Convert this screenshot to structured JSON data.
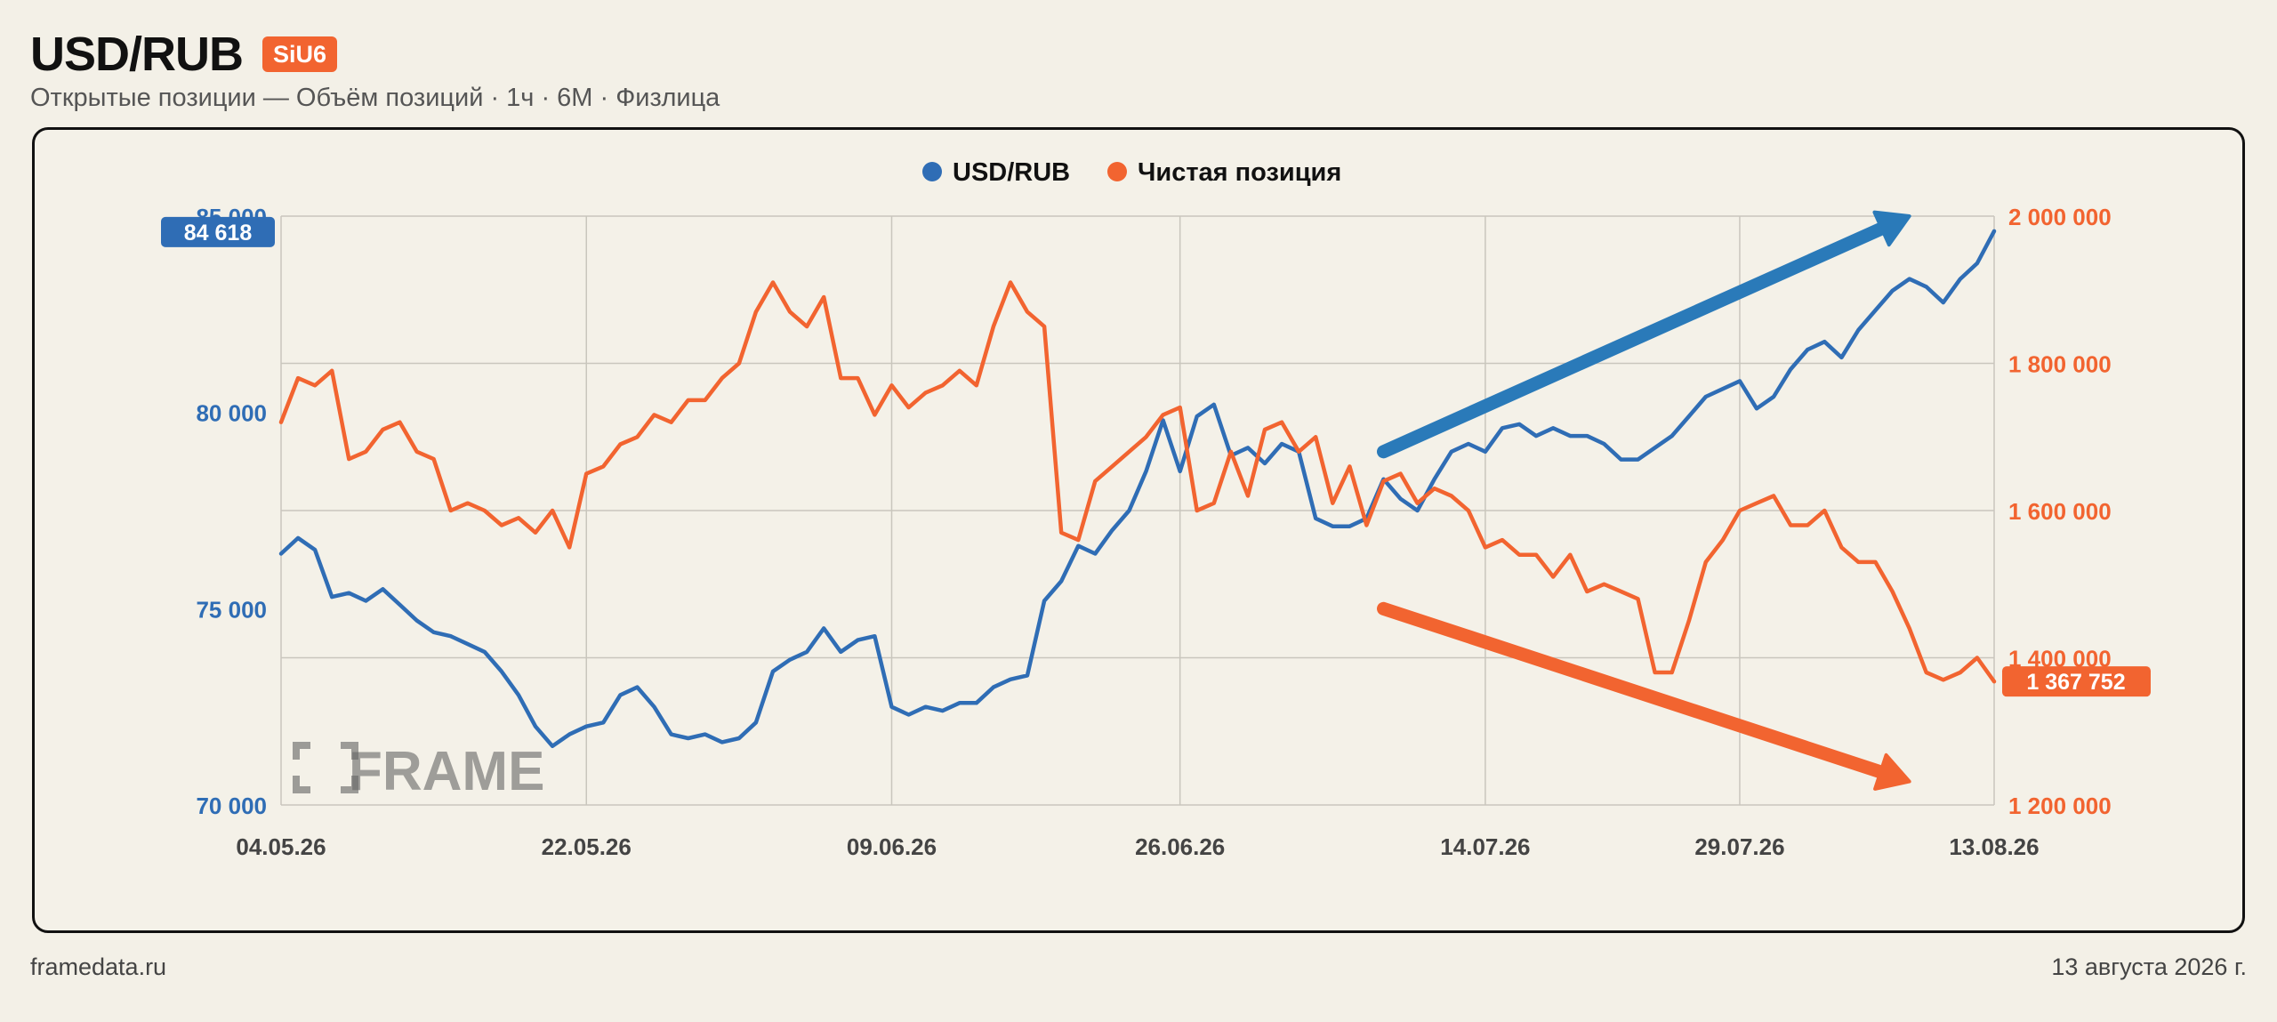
{
  "header": {
    "title": "USD/RUB",
    "badge": "SiU6",
    "subtitle": "Открытые позиции — Объём позиций · 1ч · 6М · Физлица"
  },
  "footer": {
    "source": "framedata.ru",
    "date": "13 августа 2026 г."
  },
  "watermark": "FRAME",
  "colors": {
    "usd": "#2f6db5",
    "position": "#f26430",
    "arrow_blue": "#2a7ab9",
    "arrow_orange": "#f26430"
  },
  "chart_data": {
    "type": "line",
    "legend": [
      "USD/RUB",
      "Чистая позиция"
    ],
    "legend_position": "top-center",
    "grid": true,
    "x_ticks": [
      "04.05.26",
      "22.05.26",
      "09.06.26",
      "26.06.26",
      "14.07.26",
      "29.07.26",
      "13.08.26"
    ],
    "x_range": [
      "04.05.26",
      "13.08.26"
    ],
    "y_left": {
      "ticks": [
        "70 000",
        "75 000",
        "80 000",
        "85 000"
      ],
      "range": [
        70000,
        85000
      ]
    },
    "y_right": {
      "ticks": [
        "1 200 000",
        "1 400 000",
        "1 600 000",
        "1 800 000",
        "2 000 000"
      ],
      "range": [
        1200000,
        2000000
      ]
    },
    "last_labels": {
      "usd": "84 618",
      "position": "1 367 752"
    },
    "series": [
      {
        "name": "USD/RUB",
        "axis": "left",
        "points": [
          [
            "04.05.26",
            76400
          ],
          [
            "05.05.26",
            76800
          ],
          [
            "06.05.26",
            76500
          ],
          [
            "07.05.26",
            75300
          ],
          [
            "08.05.26",
            75400
          ],
          [
            "09.05.26",
            75200
          ],
          [
            "10.05.26",
            75500
          ],
          [
            "11.05.26",
            75100
          ],
          [
            "12.05.26",
            74700
          ],
          [
            "13.05.26",
            74400
          ],
          [
            "14.05.26",
            74300
          ],
          [
            "15.05.26",
            74100
          ],
          [
            "16.05.26",
            73900
          ],
          [
            "17.05.26",
            73400
          ],
          [
            "18.05.26",
            72800
          ],
          [
            "19.05.26",
            72000
          ],
          [
            "20.05.26",
            71500
          ],
          [
            "21.05.26",
            71800
          ],
          [
            "22.05.26",
            72000
          ],
          [
            "23.05.26",
            72100
          ],
          [
            "24.05.26",
            72800
          ],
          [
            "25.05.26",
            73000
          ],
          [
            "26.05.26",
            72500
          ],
          [
            "27.05.26",
            71800
          ],
          [
            "28.05.26",
            71700
          ],
          [
            "29.05.26",
            71800
          ],
          [
            "30.05.26",
            71600
          ],
          [
            "31.05.26",
            71700
          ],
          [
            "01.06.26",
            72100
          ],
          [
            "02.06.26",
            73400
          ],
          [
            "03.06.26",
            73700
          ],
          [
            "04.06.26",
            73900
          ],
          [
            "05.06.26",
            74500
          ],
          [
            "06.06.26",
            73900
          ],
          [
            "07.06.26",
            74200
          ],
          [
            "08.06.26",
            74300
          ],
          [
            "09.06.26",
            72500
          ],
          [
            "10.06.26",
            72300
          ],
          [
            "11.06.26",
            72500
          ],
          [
            "12.06.26",
            72400
          ],
          [
            "13.06.26",
            72600
          ],
          [
            "14.06.26",
            72600
          ],
          [
            "15.06.26",
            73000
          ],
          [
            "16.06.26",
            73200
          ],
          [
            "17.06.26",
            73300
          ],
          [
            "18.06.26",
            75200
          ],
          [
            "19.06.26",
            75700
          ],
          [
            "20.06.26",
            76600
          ],
          [
            "21.06.26",
            76400
          ],
          [
            "22.06.26",
            77000
          ],
          [
            "23.06.26",
            77500
          ],
          [
            "24.06.26",
            78500
          ],
          [
            "25.06.26",
            79800
          ],
          [
            "26.06.26",
            78500
          ],
          [
            "27.06.26",
            79900
          ],
          [
            "28.06.26",
            80200
          ],
          [
            "29.06.26",
            78900
          ],
          [
            "30.06.26",
            79100
          ],
          [
            "01.07.26",
            78700
          ],
          [
            "02.07.26",
            79200
          ],
          [
            "03.07.26",
            79000
          ],
          [
            "04.07.26",
            77300
          ],
          [
            "05.07.26",
            77100
          ],
          [
            "06.07.26",
            77100
          ],
          [
            "07.07.26",
            77300
          ],
          [
            "08.07.26",
            78300
          ],
          [
            "09.07.26",
            77800
          ],
          [
            "10.07.26",
            77500
          ],
          [
            "11.07.26",
            78300
          ],
          [
            "12.07.26",
            79000
          ],
          [
            "13.07.26",
            79200
          ],
          [
            "14.07.26",
            79000
          ],
          [
            "15.07.26",
            79600
          ],
          [
            "16.07.26",
            79700
          ],
          [
            "17.07.26",
            79400
          ],
          [
            "18.07.26",
            79600
          ],
          [
            "19.07.26",
            79400
          ],
          [
            "20.07.26",
            79400
          ],
          [
            "21.07.26",
            79200
          ],
          [
            "22.07.26",
            78800
          ],
          [
            "23.07.26",
            78800
          ],
          [
            "24.07.26",
            79100
          ],
          [
            "25.07.26",
            79400
          ],
          [
            "26.07.26",
            79900
          ],
          [
            "27.07.26",
            80400
          ],
          [
            "28.07.26",
            80600
          ],
          [
            "29.07.26",
            80800
          ],
          [
            "30.07.26",
            80100
          ],
          [
            "31.07.26",
            80400
          ],
          [
            "01.08.26",
            81100
          ],
          [
            "02.08.26",
            81600
          ],
          [
            "03.08.26",
            81800
          ],
          [
            "04.08.26",
            81400
          ],
          [
            "05.08.26",
            82100
          ],
          [
            "06.08.26",
            82600
          ],
          [
            "07.08.26",
            83100
          ],
          [
            "08.08.26",
            83400
          ],
          [
            "09.08.26",
            83200
          ],
          [
            "10.08.26",
            82800
          ],
          [
            "11.08.26",
            83400
          ],
          [
            "12.08.26",
            83800
          ],
          [
            "13.08.26",
            84618
          ]
        ]
      },
      {
        "name": "Чистая позиция",
        "axis": "right",
        "points": [
          [
            "04.05.26",
            1720000
          ],
          [
            "05.05.26",
            1780000
          ],
          [
            "06.05.26",
            1770000
          ],
          [
            "07.05.26",
            1790000
          ],
          [
            "08.05.26",
            1670000
          ],
          [
            "09.05.26",
            1680000
          ],
          [
            "10.05.26",
            1710000
          ],
          [
            "11.05.26",
            1720000
          ],
          [
            "12.05.26",
            1680000
          ],
          [
            "13.05.26",
            1670000
          ],
          [
            "14.05.26",
            1600000
          ],
          [
            "15.05.26",
            1610000
          ],
          [
            "16.05.26",
            1600000
          ],
          [
            "17.05.26",
            1580000
          ],
          [
            "18.05.26",
            1590000
          ],
          [
            "19.05.26",
            1570000
          ],
          [
            "20.05.26",
            1600000
          ],
          [
            "21.05.26",
            1550000
          ],
          [
            "22.05.26",
            1650000
          ],
          [
            "23.05.26",
            1660000
          ],
          [
            "24.05.26",
            1690000
          ],
          [
            "25.05.26",
            1700000
          ],
          [
            "26.05.26",
            1730000
          ],
          [
            "27.05.26",
            1720000
          ],
          [
            "28.05.26",
            1750000
          ],
          [
            "29.05.26",
            1750000
          ],
          [
            "30.05.26",
            1780000
          ],
          [
            "31.05.26",
            1800000
          ],
          [
            "01.06.26",
            1870000
          ],
          [
            "02.06.26",
            1910000
          ],
          [
            "03.06.26",
            1870000
          ],
          [
            "04.06.26",
            1850000
          ],
          [
            "05.06.26",
            1890000
          ],
          [
            "06.06.26",
            1780000
          ],
          [
            "07.06.26",
            1780000
          ],
          [
            "08.06.26",
            1730000
          ],
          [
            "09.06.26",
            1770000
          ],
          [
            "10.06.26",
            1740000
          ],
          [
            "11.06.26",
            1760000
          ],
          [
            "12.06.26",
            1770000
          ],
          [
            "13.06.26",
            1790000
          ],
          [
            "14.06.26",
            1770000
          ],
          [
            "15.06.26",
            1850000
          ],
          [
            "16.06.26",
            1910000
          ],
          [
            "17.06.26",
            1870000
          ],
          [
            "18.06.26",
            1850000
          ],
          [
            "19.06.26",
            1570000
          ],
          [
            "20.06.26",
            1560000
          ],
          [
            "21.06.26",
            1640000
          ],
          [
            "22.06.26",
            1660000
          ],
          [
            "23.06.26",
            1680000
          ],
          [
            "24.06.26",
            1700000
          ],
          [
            "25.06.26",
            1730000
          ],
          [
            "26.06.26",
            1740000
          ],
          [
            "27.06.26",
            1600000
          ],
          [
            "28.06.26",
            1610000
          ],
          [
            "29.06.26",
            1680000
          ],
          [
            "30.06.26",
            1620000
          ],
          [
            "01.07.26",
            1710000
          ],
          [
            "02.07.26",
            1720000
          ],
          [
            "03.07.26",
            1680000
          ],
          [
            "04.07.26",
            1700000
          ],
          [
            "05.07.26",
            1610000
          ],
          [
            "06.07.26",
            1660000
          ],
          [
            "07.07.26",
            1580000
          ],
          [
            "08.07.26",
            1640000
          ],
          [
            "09.07.26",
            1650000
          ],
          [
            "10.07.26",
            1610000
          ],
          [
            "11.07.26",
            1630000
          ],
          [
            "12.07.26",
            1620000
          ],
          [
            "13.07.26",
            1600000
          ],
          [
            "14.07.26",
            1550000
          ],
          [
            "15.07.26",
            1560000
          ],
          [
            "16.07.26",
            1540000
          ],
          [
            "17.07.26",
            1540000
          ],
          [
            "18.07.26",
            1510000
          ],
          [
            "19.07.26",
            1540000
          ],
          [
            "20.07.26",
            1490000
          ],
          [
            "21.07.26",
            1500000
          ],
          [
            "22.07.26",
            1490000
          ],
          [
            "23.07.26",
            1480000
          ],
          [
            "24.07.26",
            1380000
          ],
          [
            "25.07.26",
            1380000
          ],
          [
            "26.07.26",
            1450000
          ],
          [
            "27.07.26",
            1530000
          ],
          [
            "28.07.26",
            1560000
          ],
          [
            "29.07.26",
            1600000
          ],
          [
            "30.07.26",
            1610000
          ],
          [
            "31.07.26",
            1620000
          ],
          [
            "01.08.26",
            1580000
          ],
          [
            "02.08.26",
            1580000
          ],
          [
            "03.08.26",
            1600000
          ],
          [
            "04.08.26",
            1550000
          ],
          [
            "05.08.26",
            1530000
          ],
          [
            "06.08.26",
            1530000
          ],
          [
            "07.08.26",
            1490000
          ],
          [
            "08.08.26",
            1440000
          ],
          [
            "09.08.26",
            1380000
          ],
          [
            "10.08.26",
            1370000
          ],
          [
            "11.08.26",
            1380000
          ],
          [
            "12.08.26",
            1400000
          ],
          [
            "13.08.26",
            1367752
          ]
        ]
      }
    ],
    "annotations": [
      {
        "type": "arrow",
        "color": "blue",
        "from": [
          "08.07.26",
          79000
        ],
        "to": [
          "08.08.26",
          85000
        ]
      },
      {
        "type": "arrow",
        "color": "orange",
        "from": [
          "08.07.26",
          75000
        ],
        "to": [
          "08.08.26",
          70600
        ]
      }
    ]
  }
}
